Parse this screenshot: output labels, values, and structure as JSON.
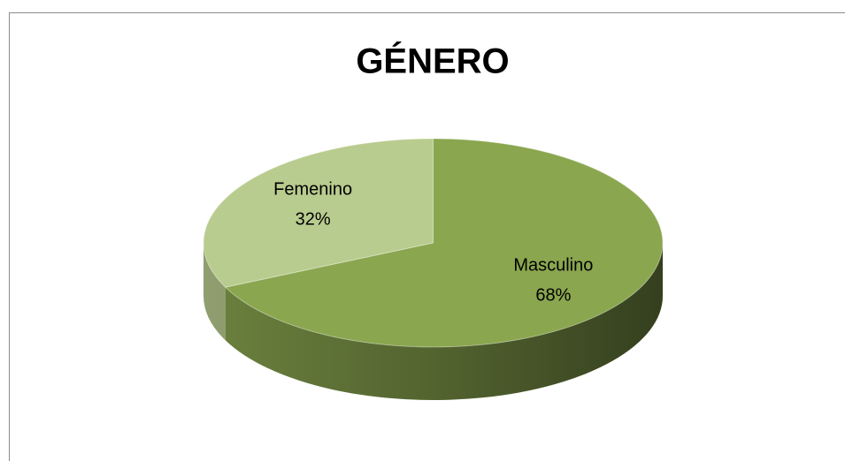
{
  "chart_data": {
    "type": "pie",
    "title": "GÉNERO",
    "categories": [
      "Masculino",
      "Femenino"
    ],
    "values": [
      68,
      32
    ],
    "value_labels": [
      "68%",
      "32%"
    ],
    "colors": [
      "#8aa64f",
      "#b9cc8f"
    ]
  }
}
